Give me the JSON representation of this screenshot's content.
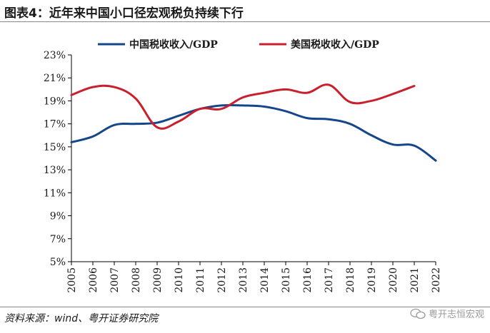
{
  "title": "图表4：近年来中国小口径宏观税负持续下行",
  "source": "资料来源：wind、粤开证券研究院",
  "watermark": "粤开志恒宏观",
  "colors": {
    "china": "#15468a",
    "us": "#c8202c",
    "axis": "#000000"
  },
  "chart_data": {
    "type": "line",
    "title": "近年来中国小口径宏观税负持续下行",
    "xlabel": "",
    "ylabel": "",
    "ylim": [
      5,
      23
    ],
    "yticks": [
      "5%",
      "7%",
      "9%",
      "11%",
      "13%",
      "15%",
      "17%",
      "19%",
      "21%",
      "23%"
    ],
    "categories": [
      "2005",
      "2006",
      "2007",
      "2008",
      "2009",
      "2010",
      "2011",
      "2012",
      "2013",
      "2014",
      "2015",
      "2016",
      "2017",
      "2018",
      "2019",
      "2020",
      "2021",
      "2022"
    ],
    "series": [
      {
        "name": "中国税收收入/GDP",
        "values": [
          15.4,
          15.9,
          16.9,
          17.0,
          17.1,
          17.7,
          18.3,
          18.6,
          18.6,
          18.5,
          18.1,
          17.5,
          17.4,
          17.0,
          16.0,
          15.2,
          15.1,
          13.8
        ]
      },
      {
        "name": "美国税收收入/GDP",
        "values": [
          19.5,
          20.2,
          20.2,
          19.2,
          16.7,
          17.2,
          18.3,
          18.3,
          19.3,
          19.7,
          20.0,
          19.7,
          20.4,
          18.9,
          19.0,
          19.6,
          20.3,
          null
        ]
      }
    ],
    "legend": "top"
  }
}
